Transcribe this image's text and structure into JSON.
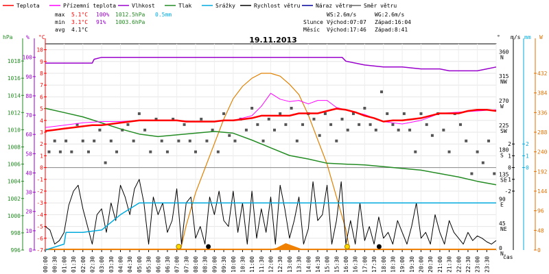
{
  "chart_data": {
    "type": "line",
    "title": "19.11.2013",
    "legend": [
      {
        "name": "Teplota",
        "color": "#ff0000"
      },
      {
        "name": "Přízemní teplota",
        "color": "#ff00ff"
      },
      {
        "name": "Vlhkost",
        "color": "#9900cc"
      },
      {
        "name": "Tlak",
        "color": "#228b22"
      },
      {
        "name": "Srážky",
        "color": "#00aadd"
      },
      {
        "name": "Rychlost větru",
        "color": "#000000"
      },
      {
        "name": "Náraz větru",
        "color": "#000099"
      },
      {
        "name": "Směr větru",
        "color": "#666666"
      }
    ],
    "stats": {
      "max": {
        "label": "max",
        "temp": "5.1°C",
        "hum": "100%",
        "press": "1012.5hPa",
        "rain": "0.5mm"
      },
      "min": {
        "label": "min",
        "temp": "3.1°C",
        "hum": "91%",
        "press": "1003.6hPa"
      },
      "avg": {
        "label": "avg",
        "temp": "4.1°C"
      }
    },
    "info": {
      "ws": "WS:2.6m/s",
      "wg": "WG:2.6m/s",
      "sun_label": "Slunce",
      "sunrise": "Východ:07:07",
      "sunset": "Západ:16:04",
      "moon_label": "Měsíc",
      "moonrise": "Východ:17:46",
      "moonset": "Západ:8:41"
    },
    "axes": {
      "pressure": {
        "unit": "hPa",
        "ticks": [
          996,
          998,
          1000,
          1002,
          1004,
          1006,
          1008,
          1010,
          1012,
          1014,
          1016,
          1018
        ],
        "range": [
          996,
          1020
        ]
      },
      "humidity": {
        "unit": "%",
        "ticks": [
          0,
          10,
          20,
          30,
          40,
          50,
          60,
          70,
          80,
          90,
          100
        ],
        "range": [
          0,
          107
        ]
      },
      "temperature": {
        "unit": "°C",
        "ticks": [
          -7,
          -6,
          -5,
          -4,
          -3,
          -2,
          -1,
          0,
          1,
          2,
          3,
          4,
          5,
          6,
          7,
          8,
          9,
          10
        ],
        "range": [
          -7,
          10.5
        ]
      },
      "wind_dir": {
        "unit": "°",
        "ticks": [
          {
            "v": 0,
            "l": "0",
            "d": "N"
          },
          {
            "v": 45,
            "l": "45",
            "d": "NE"
          },
          {
            "v": 90,
            "l": "90",
            "d": "E"
          },
          {
            "v": 135,
            "l": "135",
            "d": "SE"
          },
          {
            "v": 180,
            "l": "180",
            "d": "S"
          },
          {
            "v": 225,
            "l": "225",
            "d": "SW"
          },
          {
            "v": 270,
            "l": "270",
            "d": "W"
          },
          {
            "v": 315,
            "l": "315",
            "d": "NW"
          },
          {
            "v": 360,
            "l": "360",
            "d": "N"
          }
        ],
        "range": [
          0,
          378
        ]
      },
      "wind_speed": {
        "unit": "m/s",
        "ticks": [
          -2,
          -1,
          0,
          1,
          2
        ],
        "range": [
          -7,
          10.5
        ]
      },
      "rain": {
        "unit": "mm",
        "ticks": [
          0,
          1,
          2
        ],
        "range": [
          -7,
          10.5
        ]
      },
      "solar": {
        "unit": "W",
        "ticks": [
          0,
          48,
          96,
          144,
          192,
          240,
          288,
          336,
          384,
          432
        ],
        "range": [
          0,
          504
        ]
      },
      "time_label": "čas",
      "x_ticks": [
        "00:00",
        "00:30",
        "01:00",
        "01:30",
        "02:00",
        "02:30",
        "03:00",
        "03:30",
        "04:00",
        "04:30",
        "05:00",
        "05:30",
        "06:00",
        "06:30",
        "07:00",
        "07:30",
        "08:00",
        "08:30",
        "09:00",
        "09:30",
        "10:00",
        "10:30",
        "11:00",
        "11:30",
        "12:00",
        "12:30",
        "13:00",
        "13:30",
        "14:00",
        "14:30",
        "15:00",
        "15:30",
        "16:00",
        "16:30",
        "17:00",
        "17:30",
        "18:00",
        "18:30",
        "19:00",
        "19:30",
        "20:00",
        "20:30",
        "21:00",
        "21:30",
        "22:00",
        "22:30",
        "23:00",
        "23:30"
      ]
    },
    "series": {
      "temperature": {
        "x": [
          0,
          0.5,
          1,
          1.5,
          2,
          2.5,
          3,
          3.5,
          4,
          4.5,
          5,
          5.5,
          6,
          6.5,
          7,
          7.5,
          8,
          8.5,
          9,
          9.5,
          10,
          10.5,
          11,
          11.5,
          12,
          12.5,
          13,
          13.5,
          14,
          14.5,
          15,
          15.5,
          16,
          16.5,
          17,
          17.5,
          18,
          18.5,
          19,
          19.5,
          20,
          20.5,
          21,
          21.5,
          22,
          22.5,
          23,
          23.5,
          24
        ],
        "y": [
          3.1,
          3.2,
          3.3,
          3.4,
          3.5,
          3.6,
          3.6,
          3.7,
          3.8,
          3.9,
          4.0,
          4.0,
          4.0,
          4.0,
          4.0,
          3.9,
          3.9,
          3.9,
          3.9,
          4.0,
          4.0,
          4.1,
          4.2,
          4.4,
          4.4,
          4.4,
          4.4,
          4.6,
          4.6,
          4.6,
          4.8,
          5.0,
          4.9,
          4.7,
          4.4,
          4.2,
          3.9,
          4.0,
          4.0,
          4.1,
          4.2,
          4.4,
          4.6,
          4.6,
          4.6,
          4.8,
          4.9,
          4.9,
          4.8
        ]
      },
      "ground_temperature": {
        "x": [
          0,
          1,
          2,
          3,
          4,
          5,
          6,
          7,
          8,
          9,
          10,
          11,
          11.5,
          12,
          12.5,
          13,
          13.5,
          14,
          14.5,
          15,
          15.5,
          16,
          17,
          18,
          19,
          20,
          21,
          22,
          23,
          24
        ],
        "y": [
          3.4,
          3.6,
          3.8,
          3.9,
          3.9,
          4.0,
          4.0,
          4.0,
          3.9,
          3.9,
          4.0,
          4.4,
          5.2,
          6.3,
          5.8,
          5.6,
          5.7,
          5.4,
          5.7,
          5.7,
          5.1,
          4.9,
          4.5,
          3.9,
          3.7,
          4.0,
          4.6,
          4.7,
          4.8,
          4.9
        ],
        "color": "#ff00ff"
      },
      "humidity": {
        "x": [
          0,
          2,
          2.5,
          2.6,
          3,
          15.8,
          16,
          17,
          18,
          19,
          20,
          21,
          21.5,
          22,
          23,
          23.5,
          24
        ],
        "y": [
          97,
          97,
          97,
          99,
          100,
          100,
          98,
          96,
          95,
          95,
          94,
          94,
          93,
          93,
          93,
          94,
          95
        ]
      },
      "pressure": {
        "x": [
          0,
          1,
          2,
          3,
          4,
          5,
          6,
          7,
          8,
          9,
          10,
          11,
          12,
          13,
          14,
          15,
          16,
          17,
          18,
          19,
          20,
          21,
          22,
          23,
          24
        ],
        "y": [
          1012.5,
          1012,
          1011.5,
          1010.8,
          1010.1,
          1009.5,
          1009.2,
          1009.4,
          1009.6,
          1009.8,
          1009.6,
          1008.8,
          1007.9,
          1007.0,
          1006.6,
          1006.1,
          1006.0,
          1005.9,
          1005.7,
          1005.5,
          1005.3,
          1004.9,
          1004.5,
          1004.0,
          1003.6
        ]
      },
      "rain": {
        "x": [
          0,
          1,
          1.1,
          2,
          3,
          4,
          5,
          6,
          7,
          8,
          9,
          10,
          11,
          12,
          13,
          14,
          15,
          16,
          17,
          18,
          19,
          20,
          21,
          22,
          23,
          24
        ],
        "y": [
          -7,
          -6.5,
          -5.5,
          -5.5,
          -5.3,
          -4,
          -3,
          -3,
          -3,
          -3,
          -3,
          -3,
          -3,
          -3,
          -3,
          -3,
          -3,
          -3,
          -3,
          -3,
          -3,
          -3,
          -3,
          -3,
          -3,
          -3
        ]
      },
      "wind_speed": {
        "x": [
          0,
          0.25,
          0.5,
          0.75,
          1,
          1.25,
          1.5,
          1.75,
          2,
          2.25,
          2.5,
          2.75,
          3,
          3.25,
          3.5,
          3.75,
          4,
          4.25,
          4.5,
          4.75,
          5,
          5.25,
          5.5,
          5.75,
          6,
          6.25,
          6.5,
          6.75,
          7,
          7.25,
          7.5,
          7.75,
          8,
          8.25,
          8.5,
          8.75,
          9,
          9.25,
          9.5,
          9.75,
          10,
          10.25,
          10.5,
          10.75,
          11,
          11.25,
          11.5,
          11.75,
          12,
          12.25,
          12.5,
          12.75,
          13,
          13.25,
          13.5,
          13.75,
          14,
          14.25,
          14.5,
          14.75,
          15,
          15.25,
          15.5,
          15.75,
          16,
          16.25,
          16.5,
          16.75,
          17,
          17.25,
          17.5,
          17.75,
          18,
          18.25,
          18.5,
          18.75,
          19,
          19.25,
          19.5,
          19.75,
          20,
          20.25,
          20.5,
          20.75,
          21,
          21.25,
          21.5,
          21.75,
          22,
          22.25,
          22.5,
          22.75,
          23,
          23.25,
          23.5,
          23.75,
          24
        ],
        "y": [
          -5,
          -5.3,
          -6.5,
          -6.2,
          -5.5,
          -3.2,
          -2,
          -1.5,
          -3.5,
          -5,
          -6.5,
          -4,
          -3.5,
          -5.5,
          -3,
          -4.5,
          -1.5,
          -2.5,
          -4,
          -1.8,
          -1,
          -3,
          -6.5,
          -2.5,
          -4,
          -3,
          -5.5,
          -4.5,
          -1.8,
          -6.5,
          -3,
          -2.5,
          -6,
          -5,
          -6.5,
          -2.5,
          -4,
          -2,
          -4.5,
          -5,
          -2,
          -5.5,
          -3,
          -6.5,
          -2,
          -6,
          -3.5,
          -5.5,
          -2.5,
          -6.5,
          -1.5,
          -3.5,
          -6,
          -4.5,
          -2.5,
          -6.5,
          -5.2,
          -1.2,
          -4.5,
          -4,
          -1.5,
          -6.5,
          -4.5,
          -1.2,
          -6.5,
          -4.5,
          -6.5,
          -3,
          -6.2,
          -5,
          -6.5,
          -4.2,
          -6,
          -5.5,
          -6.5,
          -4.5,
          -5.5,
          -6.5,
          -5,
          -3,
          -6,
          -5.5,
          -6.5,
          -4,
          -5.5,
          -6.5,
          -4.5,
          -5.5,
          -6,
          -6.5,
          -5.5,
          -6.2,
          -5.8,
          -6,
          -6.3,
          -6.5,
          -6.2
        ]
      },
      "wind_direction": {
        "x": [
          0.2,
          0.5,
          0.8,
          1.1,
          1.4,
          1.7,
          2,
          2.3,
          2.6,
          2.9,
          3.2,
          3.5,
          3.8,
          4.1,
          4.4,
          4.7,
          5,
          5.3,
          5.6,
          5.9,
          6.2,
          6.5,
          6.8,
          7.1,
          7.4,
          7.7,
          8,
          8.3,
          8.6,
          8.9,
          9.2,
          9.5,
          9.8,
          10.1,
          10.4,
          10.7,
          11,
          11.3,
          11.6,
          11.9,
          12.2,
          12.5,
          12.8,
          13.1,
          13.4,
          13.7,
          14,
          14.3,
          14.6,
          14.9,
          15.2,
          15.5,
          15.8,
          16.1,
          16.4,
          16.7,
          17,
          17.3,
          17.6,
          17.9,
          18.2,
          18.5,
          18.8,
          19.1,
          19.4,
          19.7,
          20,
          20.3,
          20.6,
          20.9,
          21.2,
          21.5,
          21.8,
          22.1,
          22.4,
          22.7,
          23,
          23.3,
          23.6,
          23.9
        ],
        "y": [
          180,
          200,
          180,
          200,
          180,
          230,
          200,
          180,
          200,
          220,
          160,
          200,
          180,
          220,
          230,
          200,
          250,
          220,
          180,
          240,
          200,
          180,
          240,
          200,
          230,
          200,
          180,
          240,
          200,
          220,
          180,
          250,
          210,
          200,
          240,
          220,
          260,
          230,
          200,
          240,
          220,
          250,
          230,
          260,
          200,
          230,
          250,
          240,
          210,
          250,
          230,
          200,
          240,
          220,
          250,
          230,
          260,
          230,
          220,
          290,
          250,
          230,
          220,
          250,
          220,
          180,
          250,
          230,
          210,
          250,
          220,
          180,
          250,
          230,
          200,
          140,
          180,
          160,
          200,
          140
        ]
      },
      "solar": {
        "x": [
          7.2,
          7.5,
          8,
          8.5,
          9,
          9.5,
          10,
          10.5,
          11,
          11.5,
          12,
          12.5,
          13,
          13.5,
          14,
          14.5,
          15,
          15.5,
          16,
          16.2
        ],
        "y": [
          0,
          60,
          140,
          200,
          260,
          320,
          370,
          400,
          420,
          432,
          432,
          425,
          405,
          380,
          330,
          270,
          210,
          130,
          50,
          0
        ]
      },
      "sunrise_x": 7.1,
      "sunset_x": 16.07,
      "moonrise_x": 17.77,
      "moonset_x": 8.68
    }
  }
}
